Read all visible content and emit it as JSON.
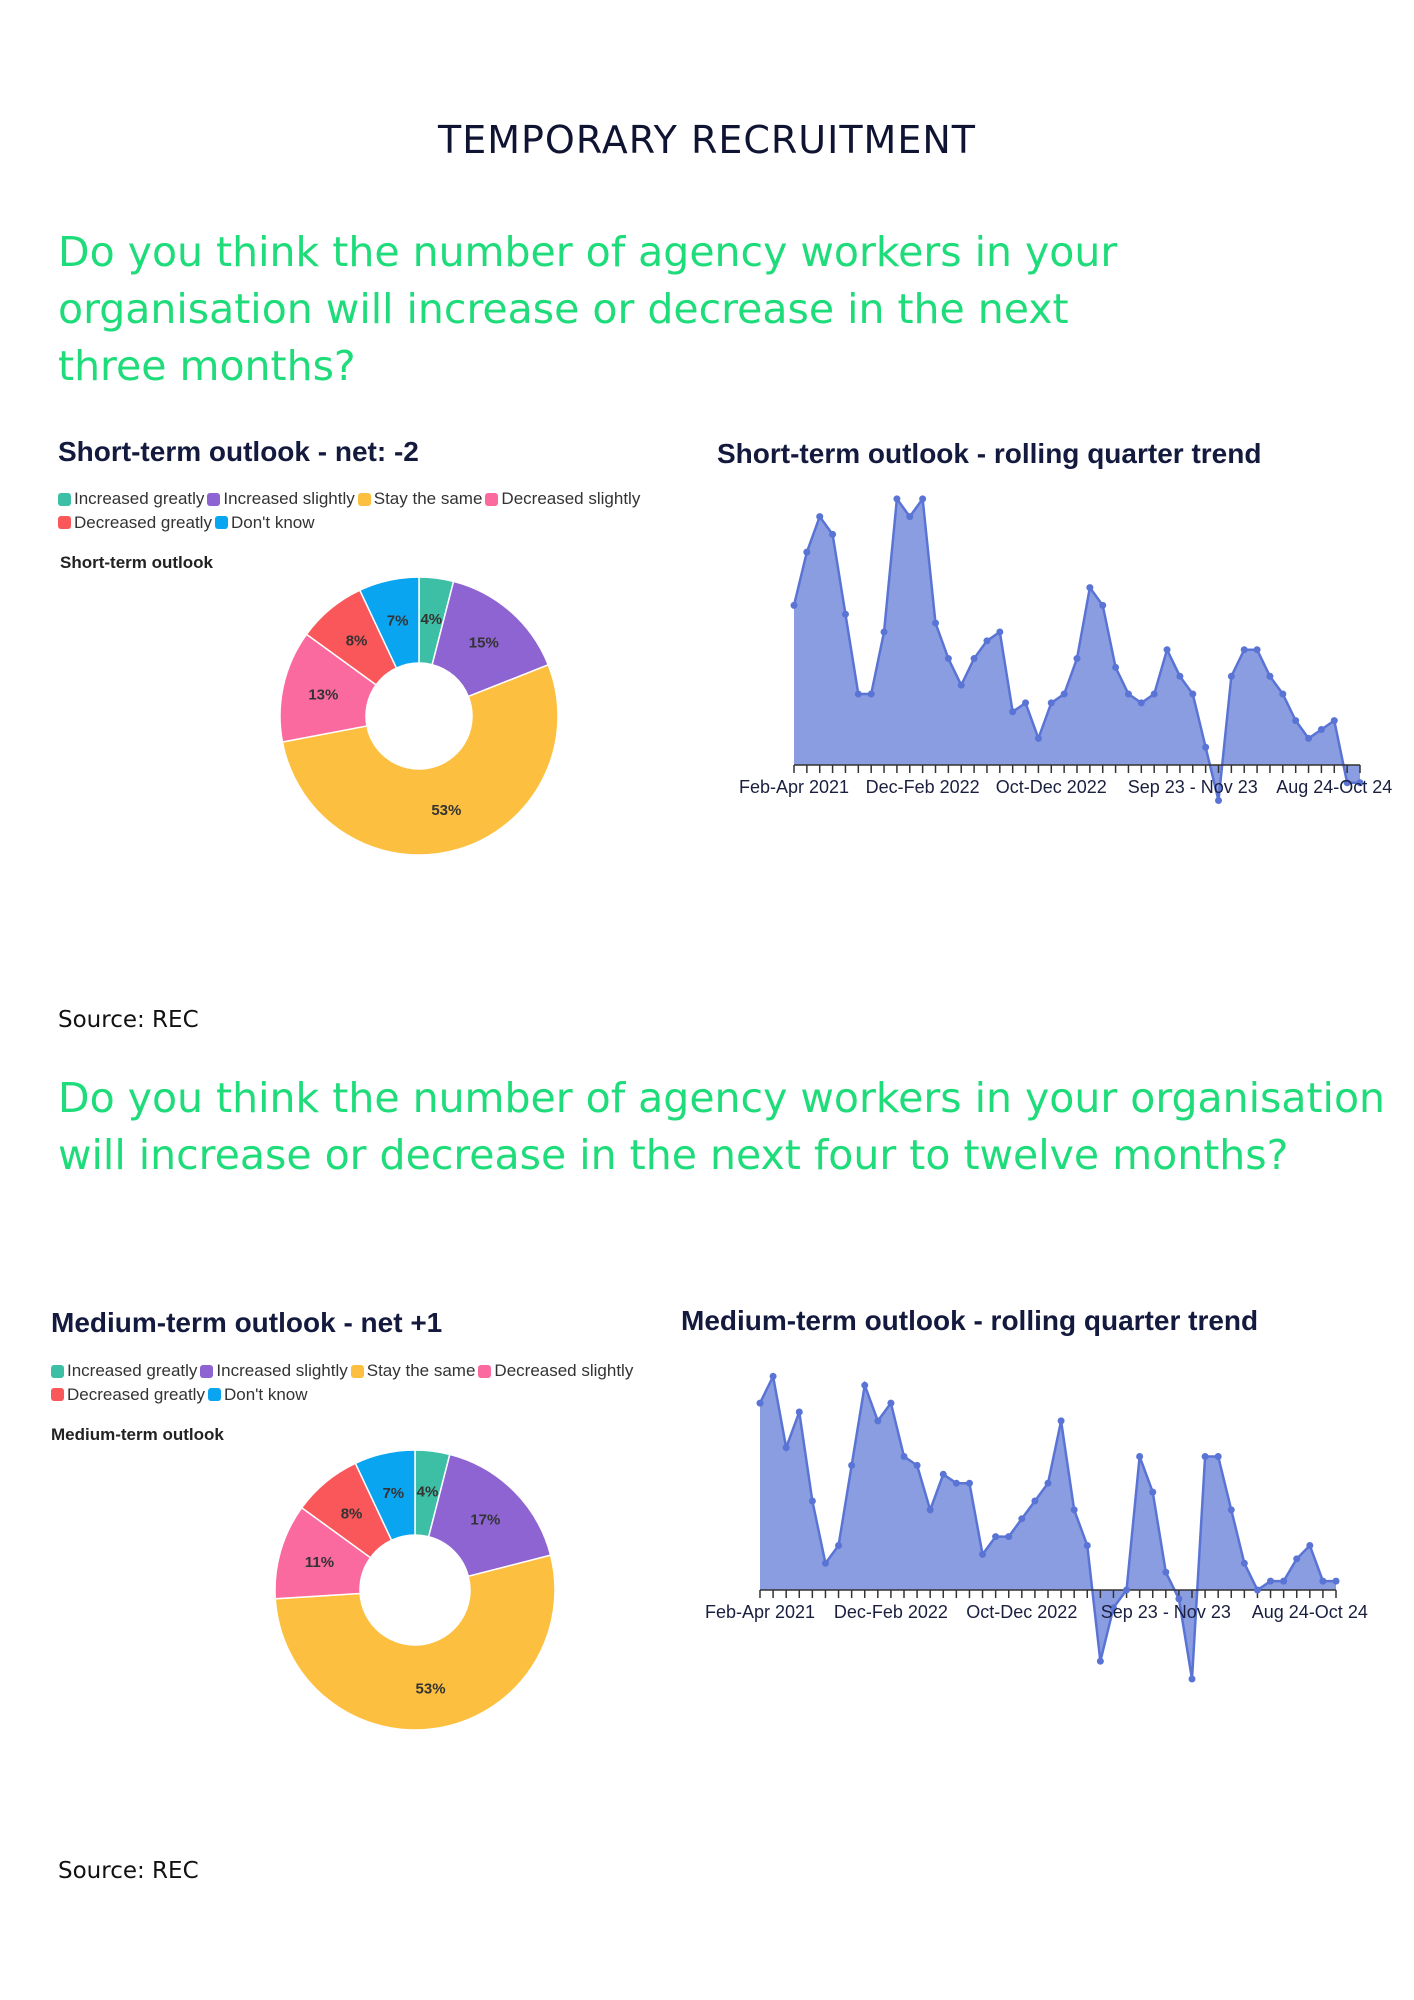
{
  "page_title": "TEMPORARY RECRUITMENT",
  "questions": [
    "Do you think the number of agency workers in your organisation will increase or decrease in the next three months?",
    "Do you think the number of agency workers in your organisation will increase or decrease in the next four to twelve months?"
  ],
  "source_text": "Source: REC",
  "legend": [
    {
      "label": "Increased greatly",
      "color": "#3dbfa6"
    },
    {
      "label": "Increased slightly",
      "color": "#8e63d2"
    },
    {
      "label": "Stay the same",
      "color": "#fdbf3f"
    },
    {
      "label": "Decreased slightly",
      "color": "#fb6a9f"
    },
    {
      "label": "Decreased greatly",
      "color": "#f9575a"
    },
    {
      "label": "Don't know",
      "color": "#0aa5f0"
    }
  ],
  "chart_data": [
    {
      "type": "pie",
      "title": "Short-term outlook - net: -2",
      "subtitle": "Short-term outlook",
      "categories": [
        "Increased greatly",
        "Increased slightly",
        "Stay the same",
        "Decreased slightly",
        "Decreased greatly",
        "Don't know"
      ],
      "values": [
        4,
        15,
        53,
        13,
        8,
        7
      ],
      "data_labels": [
        "4%",
        "15%",
        "53%",
        "13%",
        "8%",
        "7%"
      ],
      "donut": true,
      "legend": "top"
    },
    {
      "type": "area",
      "title": "Short-term outlook - rolling quarter trend",
      "values": [
        18,
        24,
        28,
        26,
        17,
        8,
        8,
        15,
        30,
        28,
        30,
        16,
        12,
        9,
        12,
        14,
        15,
        6,
        7,
        3,
        7,
        8,
        12,
        20,
        18,
        11,
        8,
        7,
        8,
        13,
        10,
        8,
        2,
        -4,
        10,
        13,
        13,
        10,
        8,
        5,
        3,
        4,
        5,
        -2,
        -2
      ],
      "x_tick_labels": [
        {
          "index": 0,
          "label": "Feb-Apr 2021"
        },
        {
          "index": 10,
          "label": "Dec-Feb 2022"
        },
        {
          "index": 20,
          "label": "Oct-Dec 2022"
        },
        {
          "index": 31,
          "label": "Sep 23 - Nov 23"
        },
        {
          "index": 42,
          "label": "Aug 24-Oct 24"
        }
      ],
      "y_axis_visible": false,
      "grid": false,
      "fill_color": "#8a9de0",
      "line_color": "#5a74d6"
    },
    {
      "type": "pie",
      "title": "Medium-term outlook - net +1",
      "subtitle": "Medium-term outlook",
      "categories": [
        "Increased greatly",
        "Increased slightly",
        "Stay the same",
        "Decreased slightly",
        "Decreased greatly",
        "Don't know"
      ],
      "values": [
        4,
        17,
        53,
        11,
        8,
        7
      ],
      "data_labels": [
        "4%",
        "17%",
        "53%",
        "11%",
        "8%",
        "7%"
      ],
      "donut": true,
      "legend": "top"
    },
    {
      "type": "area",
      "title": "Medium-term outlook - rolling quarter trend",
      "values": [
        21,
        24,
        16,
        20,
        10,
        3,
        5,
        14,
        23,
        19,
        21,
        15,
        14,
        9,
        13,
        12,
        12,
        4,
        6,
        6,
        8,
        10,
        12,
        19,
        9,
        5,
        -8,
        -2,
        0,
        15,
        11,
        2,
        -1,
        -10,
        15,
        15,
        9,
        3,
        0,
        1,
        1,
        3.5,
        5,
        1,
        1
      ],
      "x_tick_labels": [
        {
          "index": 0,
          "label": "Feb-Apr 2021"
        },
        {
          "index": 10,
          "label": "Dec-Feb 2022"
        },
        {
          "index": 20,
          "label": "Oct-Dec 2022"
        },
        {
          "index": 31,
          "label": "Sep 23 - Nov 23"
        },
        {
          "index": 42,
          "label": "Aug 24-Oct 24"
        }
      ],
      "y_axis_visible": false,
      "grid": false,
      "fill_color": "#8a9de0",
      "line_color": "#5a74d6"
    }
  ]
}
